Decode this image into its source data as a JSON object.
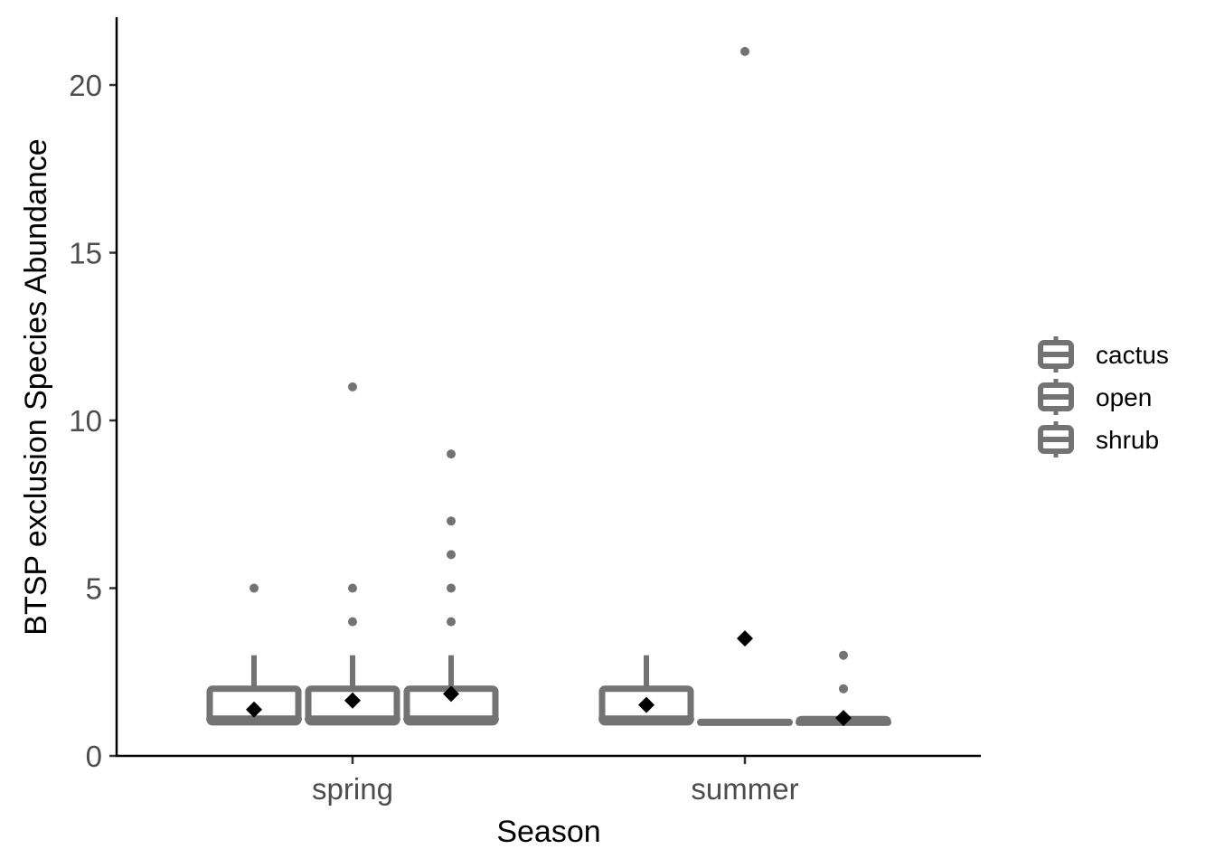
{
  "chart_data": {
    "type": "box",
    "xlabel": "Season",
    "ylabel": "BTSP exclusion Species Abundance",
    "ylim": [
      0,
      22
    ],
    "yticks": [
      0,
      5,
      10,
      15,
      20
    ],
    "categories": [
      "spring",
      "summer"
    ],
    "groups": [
      "cactus",
      "open",
      "shrub"
    ],
    "legend_position": "right",
    "grid": false,
    "colors": {
      "box": "#737373",
      "mean": "#000000",
      "axis": "#000000"
    },
    "boxes": [
      {
        "season": "spring",
        "group": "cactus",
        "min": 1,
        "q1": 1,
        "median": 1.1,
        "q3": 2,
        "max": 3,
        "mean": 1.38,
        "outliers": [
          5
        ]
      },
      {
        "season": "spring",
        "group": "open",
        "min": 1,
        "q1": 1,
        "median": 1.1,
        "q3": 2,
        "max": 3,
        "mean": 1.65,
        "outliers": [
          4,
          5,
          11
        ]
      },
      {
        "season": "spring",
        "group": "shrub",
        "min": 1,
        "q1": 1,
        "median": 1.1,
        "q3": 2,
        "max": 3,
        "mean": 1.85,
        "outliers": [
          4,
          5,
          6,
          7,
          9
        ]
      },
      {
        "season": "summer",
        "group": "cactus",
        "min": 1,
        "q1": 1,
        "median": 1.1,
        "q3": 2,
        "max": 3,
        "mean": 1.52,
        "outliers": []
      },
      {
        "season": "summer",
        "group": "open",
        "min": 1,
        "q1": 1,
        "median": 1,
        "q3": 1,
        "max": 1,
        "mean": 3.5,
        "outliers": [
          21
        ]
      },
      {
        "season": "summer",
        "group": "shrub",
        "min": 1,
        "q1": 1,
        "median": 1,
        "q3": 1.1,
        "max": 1.1,
        "mean": 1.13,
        "outliers": [
          2,
          3
        ]
      }
    ]
  }
}
